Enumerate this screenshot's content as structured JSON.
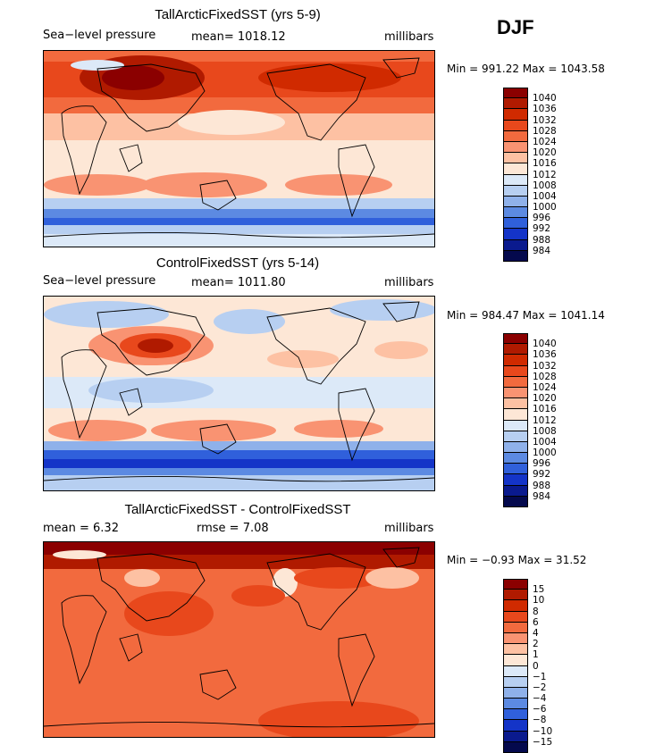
{
  "season": "DJF",
  "panels": [
    {
      "title": "TallArcticFixedSST (yrs 5-9)",
      "left_label": "Sea−level pressure",
      "mid_label": "mean=  1018.12",
      "units": "millibars",
      "minmax": "Min = 991.22  Max = 1043.58",
      "colorbar_labels": [
        "1040",
        "1036",
        "1032",
        "1028",
        "1024",
        "1020",
        "1016",
        "1012",
        "1008",
        "1004",
        "1000",
        "996",
        "992",
        "988",
        "984"
      ],
      "colorbar_colors": [
        "#8b0000",
        "#b01a00",
        "#d02a00",
        "#e8481c",
        "#f26a3e",
        "#f99372",
        "#fdc1a3",
        "#fde7d6",
        "#dce9f8",
        "#b7cff1",
        "#8fb1ea",
        "#5c8ae2",
        "#3060db",
        "#1434c8",
        "#0a1a8e",
        "#04094d"
      ]
    },
    {
      "title": "ControlFixedSST (yrs 5-14)",
      "left_label": "Sea−level pressure",
      "mid_label": "mean=  1011.80",
      "units": "millibars",
      "minmax": "Min = 984.47  Max = 1041.14",
      "colorbar_labels": [
        "1040",
        "1036",
        "1032",
        "1028",
        "1024",
        "1020",
        "1016",
        "1012",
        "1008",
        "1004",
        "1000",
        "996",
        "992",
        "988",
        "984"
      ],
      "colorbar_colors": [
        "#8b0000",
        "#b01a00",
        "#d02a00",
        "#e8481c",
        "#f26a3e",
        "#f99372",
        "#fdc1a3",
        "#fde7d6",
        "#dce9f8",
        "#b7cff1",
        "#8fb1ea",
        "#5c8ae2",
        "#3060db",
        "#1434c8",
        "#0a1a8e",
        "#04094d"
      ]
    },
    {
      "title": "TallArcticFixedSST - ControlFixedSST",
      "left_label": "mean =      6.32",
      "mid_label": "rmse =      7.08",
      "units": "millibars",
      "minmax": "Min =   −0.93  Max =   31.52",
      "colorbar_labels": [
        "15",
        "10",
        "8",
        "6",
        "4",
        "2",
        "1",
        "0",
        "−1",
        "−2",
        "−4",
        "−6",
        "−8",
        "−10",
        "−15"
      ],
      "colorbar_colors": [
        "#8b0000",
        "#b01a00",
        "#d02a00",
        "#e8481c",
        "#f26a3e",
        "#f99372",
        "#fdc1a3",
        "#fde7d6",
        "#dce9f8",
        "#b7cff1",
        "#8fb1ea",
        "#5c8ae2",
        "#3060db",
        "#1434c8",
        "#0a1a8e",
        "#04094d"
      ]
    }
  ]
}
